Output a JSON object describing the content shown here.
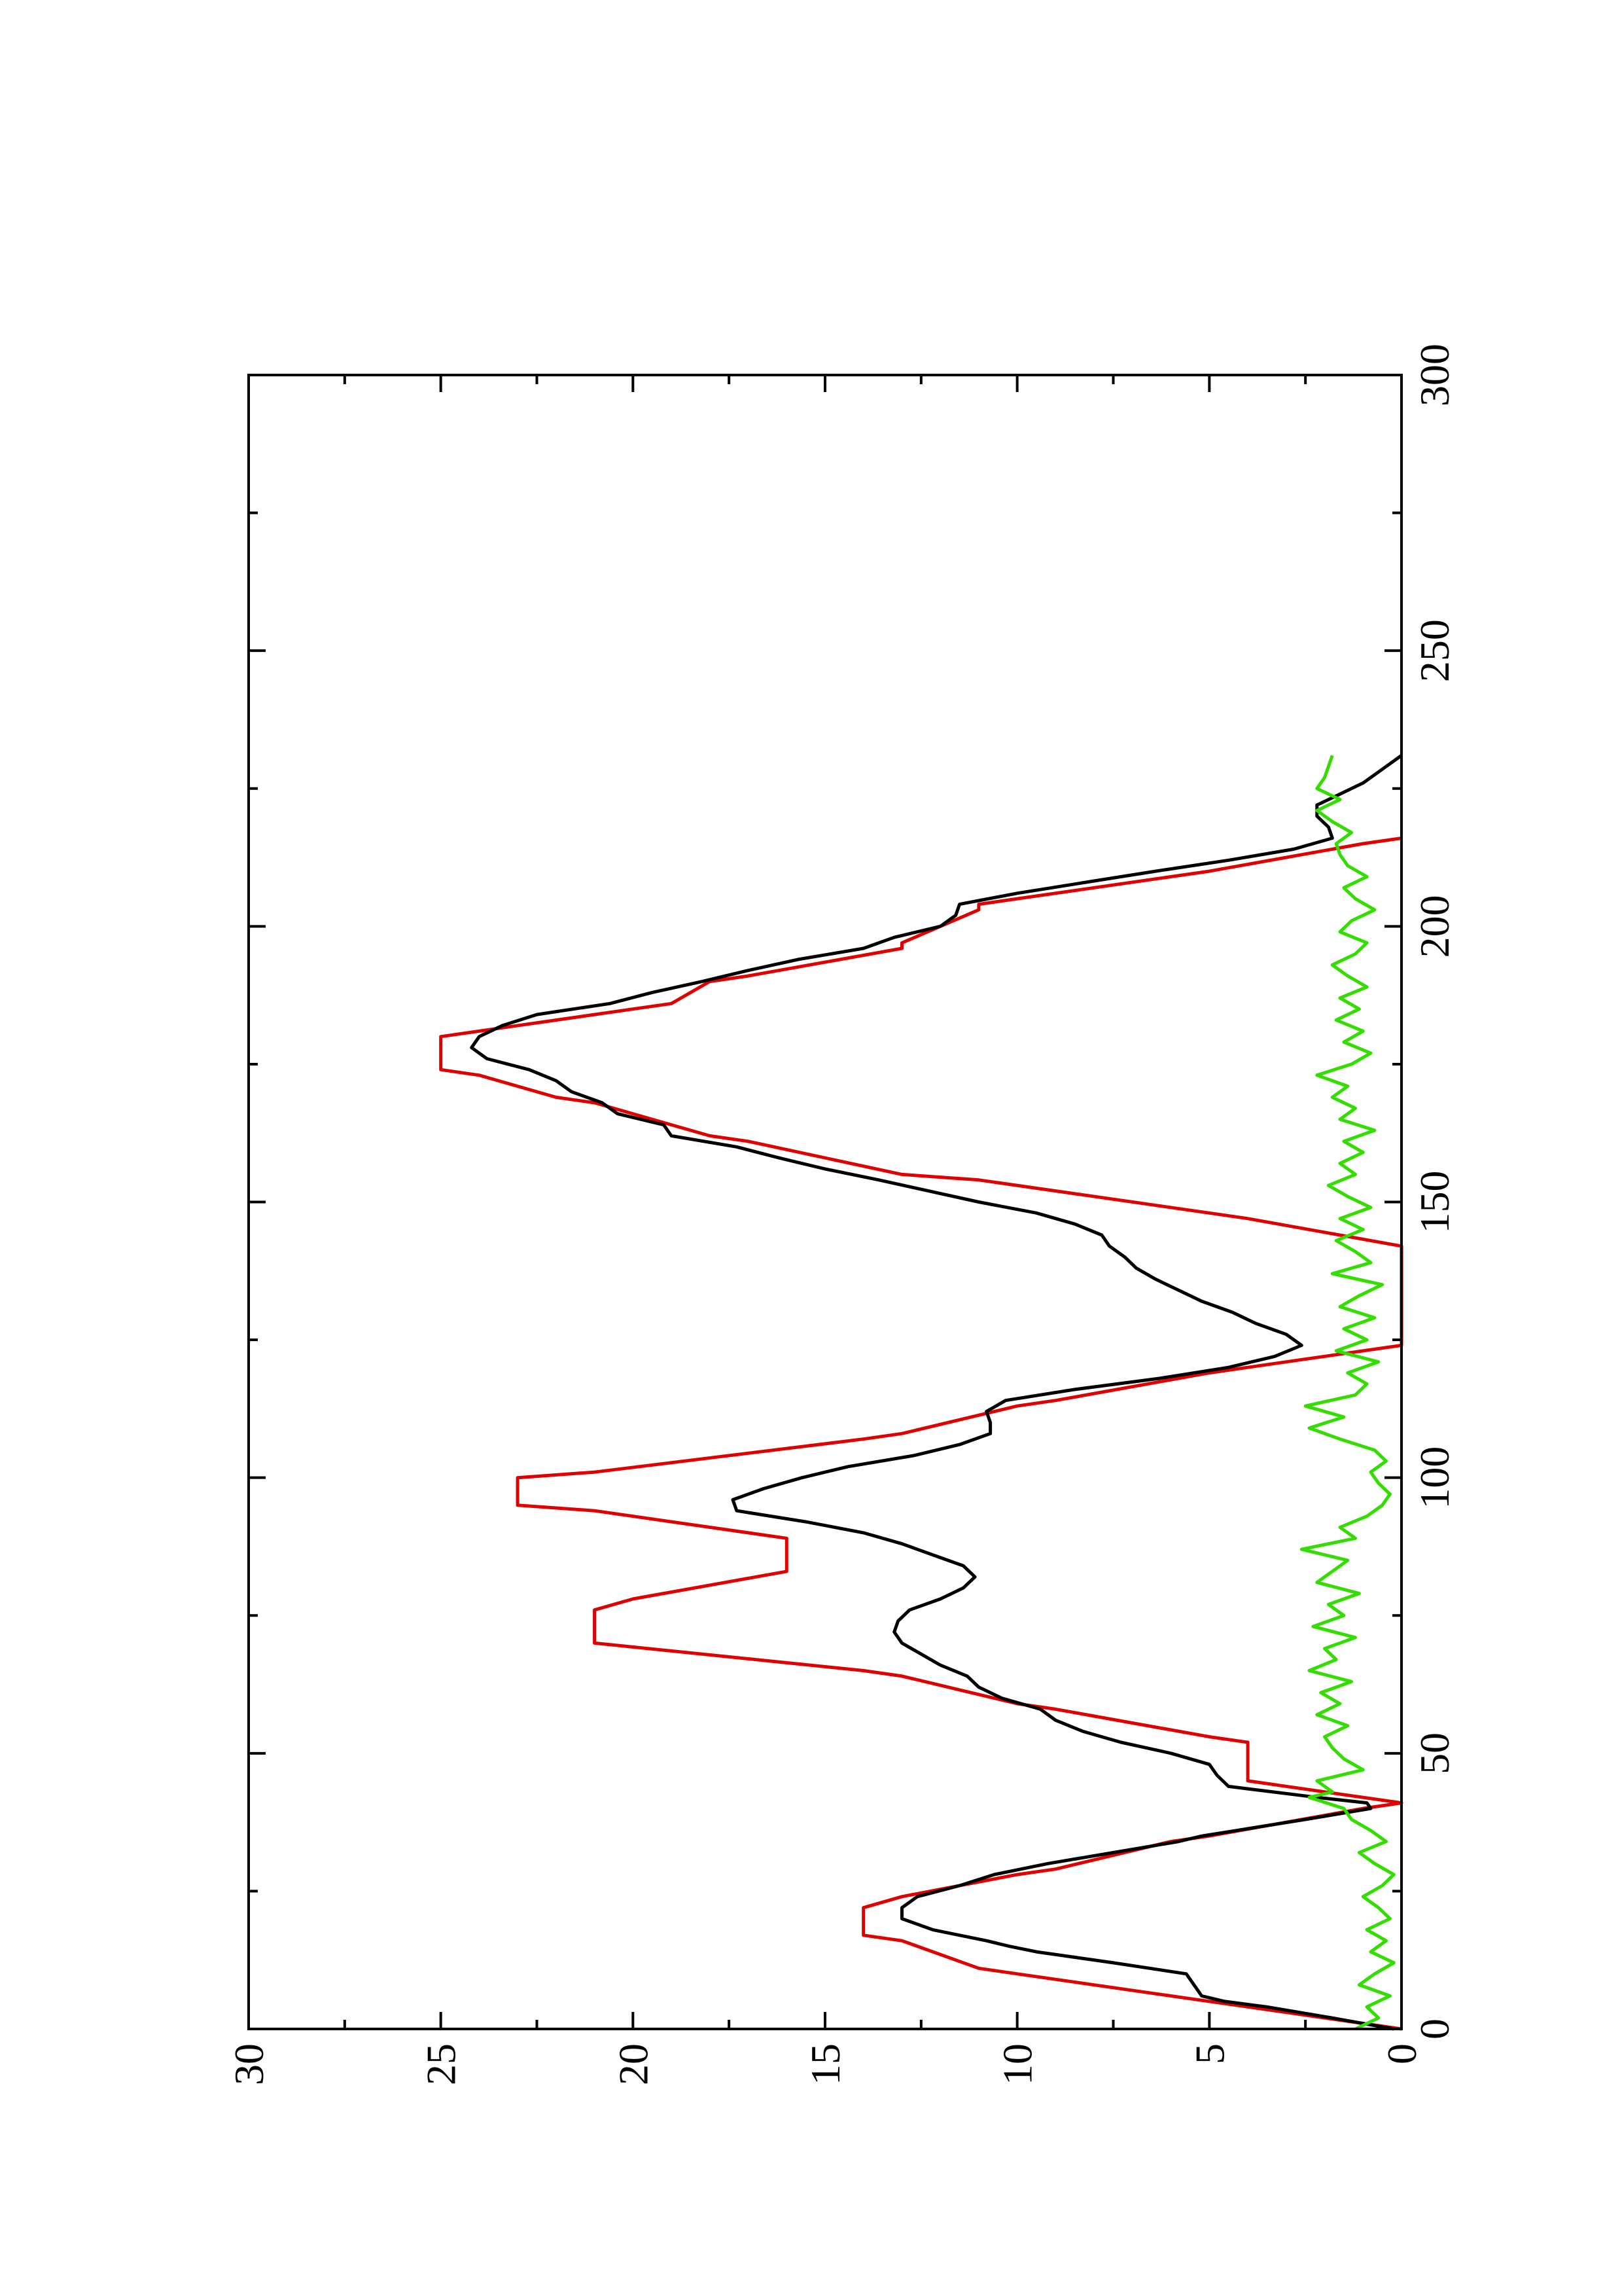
{
  "chart_data": {
    "type": "line",
    "orientation": "rotated-90-ccw",
    "xlim": [
      0,
      300
    ],
    "ylim": [
      0,
      30
    ],
    "x_ticks": [
      0,
      50,
      100,
      150,
      200,
      250,
      300
    ],
    "y_ticks": [
      0,
      5,
      10,
      15,
      20,
      25,
      30
    ],
    "x_tick_labels": [
      "0",
      "50",
      "100",
      "150",
      "200",
      "250",
      "300"
    ],
    "y_tick_labels": [
      "0",
      "5",
      "10",
      "15",
      "20",
      "25",
      "30"
    ],
    "x_minor_ticks": [
      25,
      75,
      125,
      175,
      225,
      275
    ],
    "y_minor_ticks": [
      2.5,
      7.5,
      12.5,
      17.5,
      22.5,
      27.5
    ],
    "title": "",
    "xlabel": "",
    "ylabel": "",
    "grid": false,
    "series": [
      {
        "color": "#e00000",
        "x": [
          0,
          3,
          6,
          6,
          10,
          11,
          11,
          16,
          17,
          17,
          22,
          24,
          24,
          28,
          29,
          29,
          34,
          35,
          35,
          40,
          41,
          41,
          43,
          45,
          45,
          52,
          53,
          53,
          58,
          59,
          59,
          64,
          65,
          65,
          70,
          71,
          71,
          76,
          78,
          78,
          83,
          89,
          89,
          94,
          95,
          95,
          100,
          101,
          101,
          107,
          108,
          108,
          113,
          114,
          114,
          119,
          124,
          124,
          136,
          142,
          142,
          147,
          148,
          148,
          154,
          155,
          155,
          161,
          162,
          162,
          168,
          169,
          169,
          173,
          174,
          174,
          180,
          181,
          181,
          185,
          186,
          186,
          190,
          191,
          191,
          196,
          197,
          197,
          203,
          204,
          204,
          209,
          210,
          210,
          215,
          216
        ],
        "values": [
          0,
          3,
          6,
          6,
          10,
          11,
          11,
          13,
          14,
          14,
          14,
          13,
          13,
          10,
          9,
          9,
          6,
          5,
          5,
          1,
          0,
          0,
          2,
          4,
          4,
          4,
          5,
          5,
          9,
          10,
          10,
          13,
          14,
          14,
          21,
          21,
          21,
          21,
          20,
          20,
          16,
          16,
          16,
          21,
          23,
          23,
          23,
          21,
          21,
          14,
          13,
          13,
          10,
          9,
          9,
          5,
          0,
          0,
          0,
          0,
          0,
          4,
          5,
          5,
          11,
          13,
          13,
          17,
          18,
          18,
          21,
          22,
          22,
          24,
          25,
          25,
          25,
          24,
          24,
          20,
          19,
          19,
          18,
          17,
          17,
          13,
          13,
          13,
          11,
          11,
          11,
          6,
          5,
          5,
          1,
          0
        ]
      },
      {
        "color": "#000000",
        "x": [
          0,
          2,
          4,
          5,
          6,
          8,
          10,
          12,
          14,
          15,
          16,
          18,
          20,
          22,
          24,
          26,
          28,
          30,
          32,
          34,
          35,
          36,
          38,
          40,
          41,
          42,
          44,
          46,
          48,
          50,
          52,
          54,
          56,
          58,
          60,
          62,
          64,
          66,
          68,
          70,
          72,
          74,
          76,
          78,
          80,
          82,
          84,
          86,
          88,
          90,
          92,
          94,
          96,
          98,
          100,
          102,
          104,
          106,
          108,
          110,
          112,
          114,
          116,
          118,
          120,
          122,
          124,
          126,
          128,
          130,
          132,
          134,
          136,
          138,
          140,
          142,
          144,
          146,
          148,
          150,
          152,
          154,
          156,
          158,
          160,
          162,
          164,
          166,
          168,
          170,
          172,
          174,
          176,
          178,
          180,
          182,
          184,
          186,
          188,
          190,
          192,
          194,
          196,
          198,
          200,
          202,
          204,
          206,
          208,
          210,
          212,
          214,
          216,
          218,
          220,
          222,
          224,
          226,
          228,
          230,
          231
        ],
        "values": [
          0.2,
          1.8,
          3.5,
          4.6,
          5.2,
          5.4,
          5.6,
          7.5,
          9.5,
          10.2,
          10.8,
          12.2,
          13,
          13,
          12.6,
          11.5,
          10.6,
          9.2,
          7.5,
          5.8,
          5.2,
          4.3,
          2.5,
          0.8,
          0.9,
          2.2,
          4.5,
          4.8,
          5,
          6,
          7.3,
          8.3,
          9,
          9.4,
          10.4,
          11,
          11.3,
          12,
          12.5,
          13,
          13.2,
          13.1,
          12.8,
          12,
          11.4,
          11.1,
          11.4,
          12.2,
          13,
          14,
          15.5,
          17.3,
          17.4,
          16.6,
          15.6,
          14.4,
          12.7,
          11.5,
          10.7,
          10.7,
          10.8,
          10.3,
          8.5,
          6.3,
          4.5,
          3.3,
          2.6,
          3,
          3.8,
          4.4,
          5.2,
          5.8,
          6.4,
          6.9,
          7.2,
          7.6,
          7.8,
          8.5,
          9.5,
          11,
          12.3,
          13.6,
          15,
          16.2,
          17.3,
          19,
          19.2,
          20.4,
          20.8,
          21.6,
          22,
          22.7,
          23.8,
          24.2,
          24,
          23.4,
          22.5,
          20.6,
          19.5,
          18.2,
          17,
          15.7,
          14,
          13.2,
          12,
          11.6,
          11.5,
          10,
          8.2,
          6.4,
          4.5,
          2.8,
          1.8,
          1.9,
          2.2,
          2.2,
          1.6,
          1,
          0.6,
          0.2,
          0
        ]
      },
      {
        "color": "#33dd00",
        "x": [
          0,
          2,
          4,
          6,
          8,
          10,
          12,
          14,
          16,
          18,
          20,
          22,
          24,
          26,
          28,
          30,
          32,
          34,
          36,
          38,
          40,
          42,
          43,
          45,
          47,
          49,
          51,
          53,
          55,
          57,
          59,
          61,
          63,
          65,
          67,
          69,
          71,
          73,
          75,
          77,
          79,
          81,
          83,
          85,
          87,
          89,
          91,
          93,
          95,
          97,
          99,
          101,
          103,
          105,
          107,
          109,
          111,
          113,
          115,
          117,
          119,
          121,
          123,
          125,
          127,
          129,
          131,
          133,
          135,
          137,
          139,
          141,
          143,
          145,
          147,
          149,
          151,
          153,
          155,
          157,
          159,
          161,
          163,
          165,
          167,
          169,
          171,
          173,
          175,
          177,
          179,
          181,
          183,
          185,
          187,
          189,
          191,
          193,
          195,
          197,
          199,
          201,
          203,
          205,
          207,
          209,
          211,
          213,
          215,
          217,
          219,
          221,
          223,
          225,
          227,
          229,
          231
        ],
        "values": [
          1.2,
          0.6,
          0.9,
          0.3,
          1.1,
          0.7,
          0.2,
          0.8,
          0.4,
          0.9,
          0.3,
          0.6,
          1.0,
          0.5,
          0.2,
          0.7,
          1.1,
          0.4,
          0.8,
          1.3,
          1.5,
          2.4,
          1.8,
          2.2,
          1.0,
          1.5,
          1.8,
          2.0,
          1.4,
          2.2,
          1.6,
          2.1,
          1.3,
          2.4,
          1.7,
          2.0,
          1.2,
          2.3,
          1.5,
          1.9,
          1.1,
          2.2,
          1.8,
          1.4,
          2.6,
          1.2,
          1.6,
          0.9,
          0.5,
          0.3,
          0.6,
          0.8,
          0.4,
          0.7,
          1.6,
          2.4,
          1.5,
          2.5,
          1.2,
          0.9,
          1.4,
          0.6,
          1.7,
          0.9,
          1.5,
          0.7,
          1.6,
          1.1,
          0.5,
          1.8,
          0.8,
          1.2,
          1.7,
          1.0,
          1.6,
          0.8,
          1.4,
          1.9,
          1.2,
          1.6,
          1.0,
          1.5,
          0.7,
          1.6,
          1.2,
          1.8,
          1.4,
          2.2,
          1.3,
          0.8,
          1.5,
          1.0,
          1.7,
          1.1,
          1.6,
          0.9,
          1.4,
          1.8,
          1.2,
          0.9,
          1.6,
          1.3,
          0.7,
          1.2,
          1.5,
          0.9,
          1.4,
          1.6,
          1.7,
          1.3,
          1.8,
          2.2,
          1.6,
          2.2,
          2.0,
          1.9,
          1.8
        ]
      }
    ]
  }
}
